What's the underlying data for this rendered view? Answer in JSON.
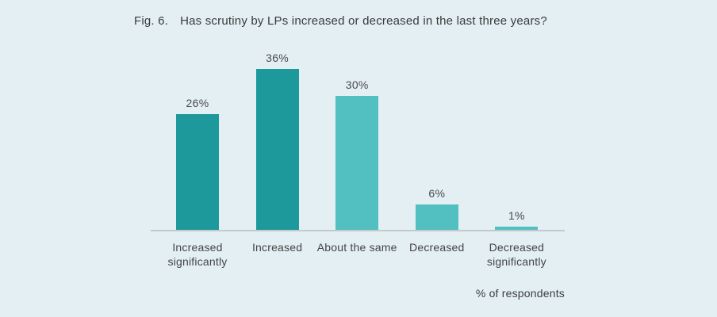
{
  "figure": {
    "fig_label": "Fig. 6.",
    "question": "Has scrutiny by LPs increased or decreased in the last three years?"
  },
  "chart_data": {
    "type": "bar",
    "fig_label": "Fig. 6.",
    "title": "Has scrutiny by LPs increased or decreased in the last three years?",
    "categories": [
      "Increased significantly",
      "Increased",
      "About the same",
      "Decreased",
      "Decreased significantly"
    ],
    "values": [
      26,
      36,
      30,
      6,
      1
    ],
    "value_labels": [
      "26%",
      "36%",
      "30%",
      "6%",
      "1%"
    ],
    "xlabel": "% of respondents",
    "ylabel": "",
    "ylim": [
      0,
      40
    ],
    "grid": false,
    "legend": null,
    "bar_colors": [
      "#1d999b",
      "#1d999b",
      "#52bfc1",
      "#52bfc1",
      "#52bfc1"
    ],
    "colors": {
      "background": "#e3eff3",
      "dark_teal": "#1d999b",
      "light_teal": "#52bfc1",
      "axis_line": "#c4cacc",
      "text": "#454545"
    }
  }
}
